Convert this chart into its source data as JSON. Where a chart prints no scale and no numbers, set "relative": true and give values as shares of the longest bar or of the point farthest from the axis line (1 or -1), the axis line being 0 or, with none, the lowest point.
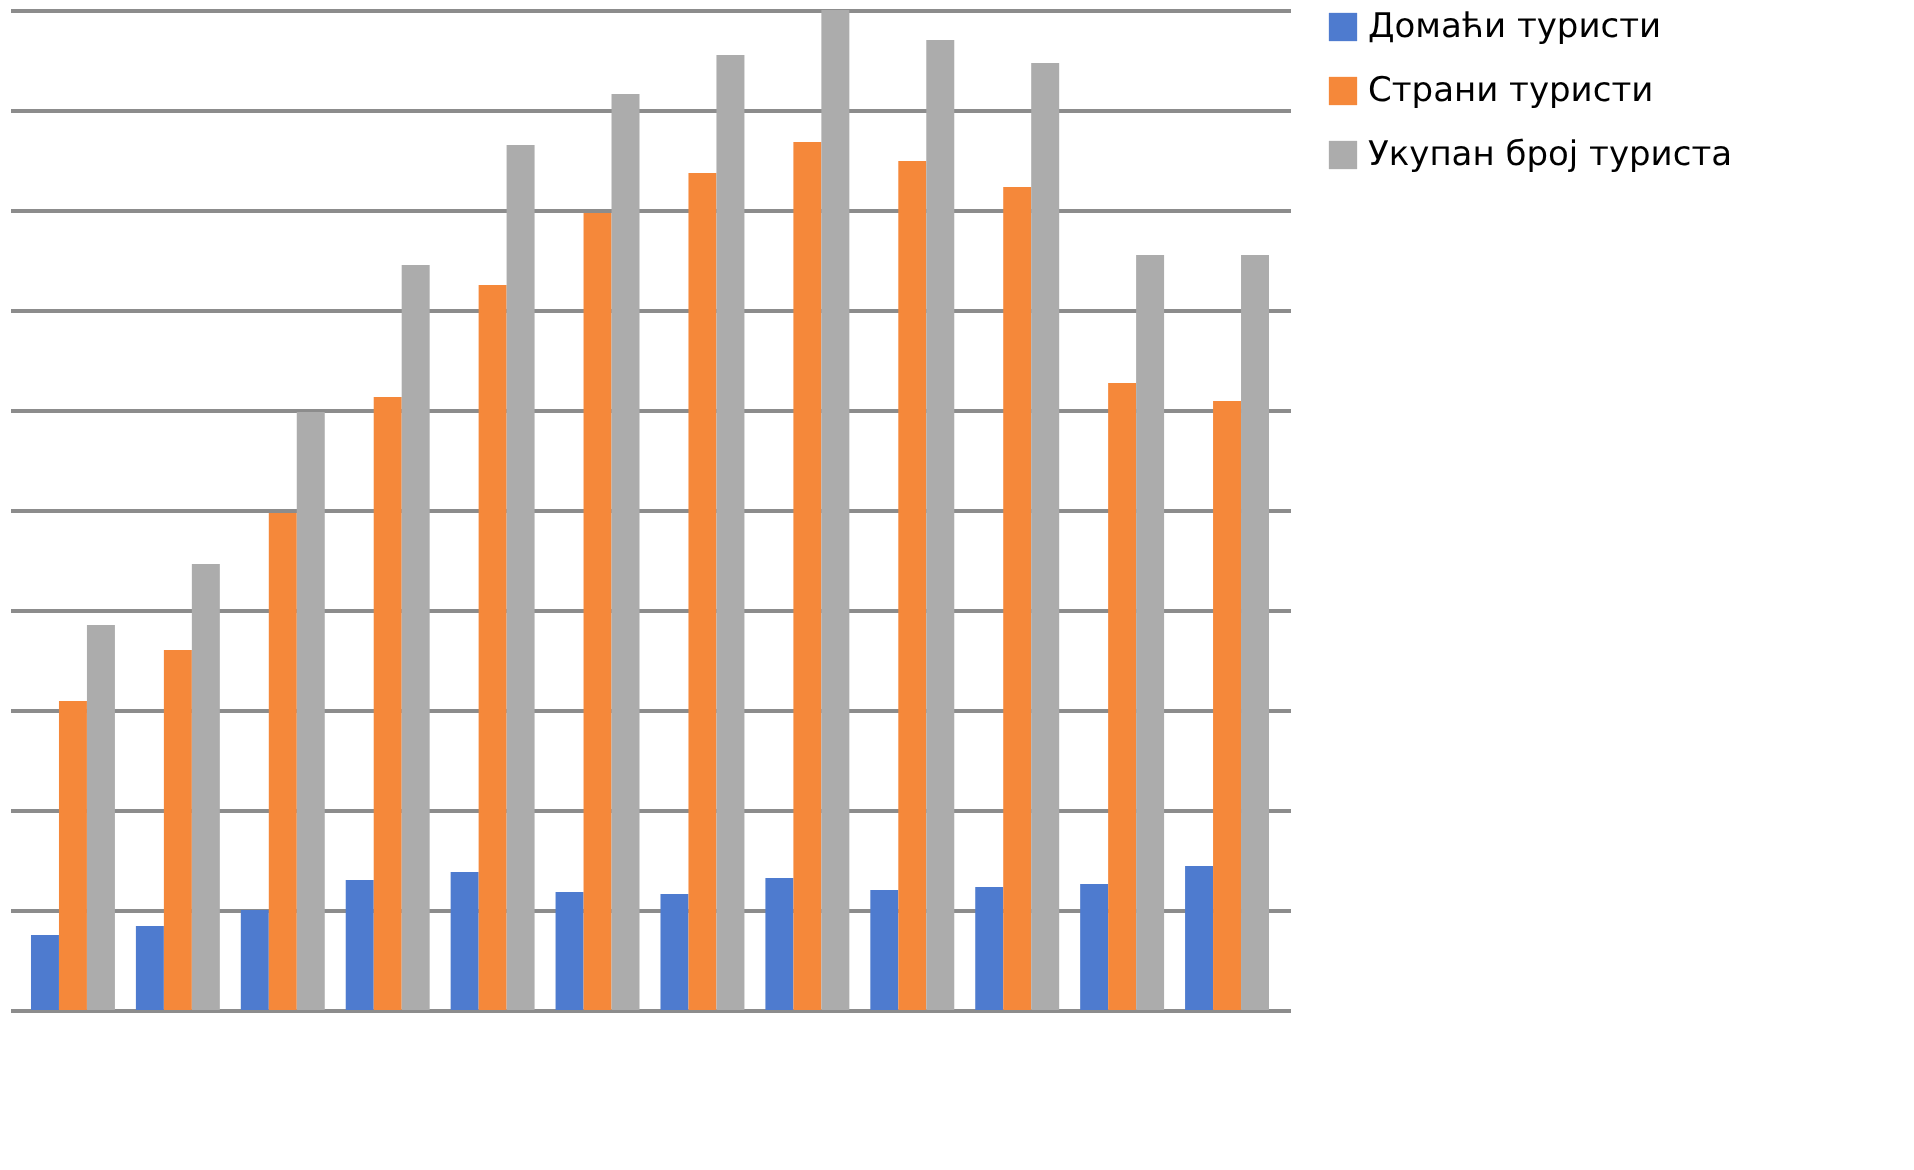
{
  "chart_data": {
    "type": "bar",
    "relative": true,
    "grid": "y",
    "legend": "right",
    "tick_labels": false,
    "categories": [
      null,
      null,
      null,
      null,
      null,
      null,
      null,
      null,
      null,
      null,
      null,
      null
    ],
    "series": [
      {
        "name": "Домаћи туристи",
        "color": "#4e7bcf",
        "values": [
          0.075,
          0.084,
          0.1,
          0.13,
          0.138,
          0.118,
          0.116,
          0.132,
          0.12,
          0.123,
          0.126,
          0.144
        ]
      },
      {
        "name": "Страни туристи",
        "color": "#f5883a",
        "values": [
          0.309,
          0.36,
          0.497,
          0.613,
          0.725,
          0.797,
          0.837,
          0.868,
          0.849,
          0.823,
          0.627,
          0.609
        ]
      },
      {
        "name": "Укупан број туриста",
        "color": "#acacac",
        "values": [
          0.385,
          0.446,
          0.598,
          0.745,
          0.865,
          0.916,
          0.955,
          1,
          0.97,
          0.947,
          0.755,
          0.755
        ]
      }
    ]
  }
}
